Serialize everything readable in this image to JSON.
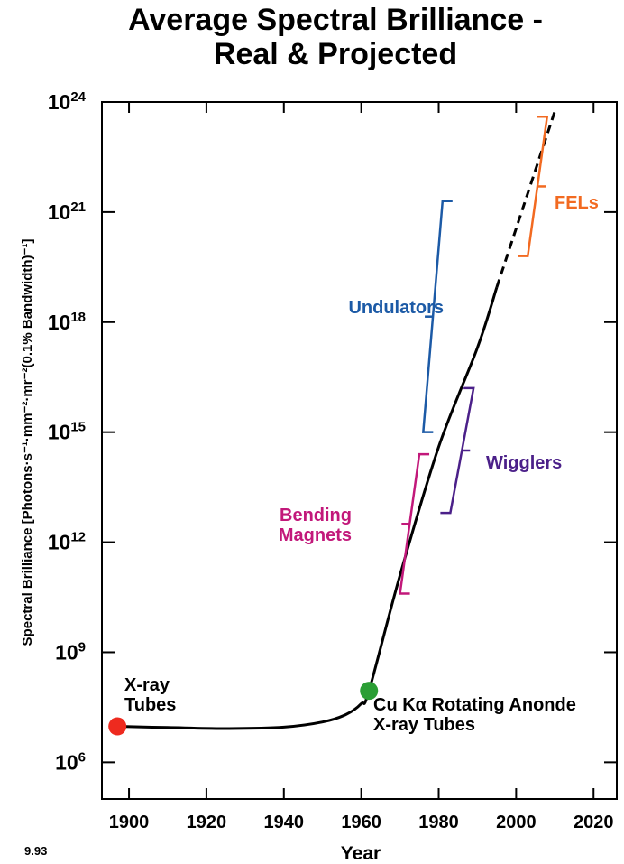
{
  "chart_data": {
    "type": "line",
    "title_lines": [
      "Average Spectral Brilliance -",
      "Real & Projected"
    ],
    "xlabel": "Year",
    "ylabel": "Spectral Brilliance [Photons·s⁻¹·mm⁻²·mr⁻²(0.1% Bandwidth)⁻¹]",
    "figure_code": "9.93",
    "x_ticks": [
      1900,
      1920,
      1940,
      1960,
      1980,
      2000,
      2020
    ],
    "y_ticks": [
      {
        "exp": 6,
        "base": "10",
        "sup": "6"
      },
      {
        "exp": 9,
        "base": "10",
        "sup": "9"
      },
      {
        "exp": 12,
        "base": "10",
        "sup": "12"
      },
      {
        "exp": 15,
        "base": "10",
        "sup": "15"
      },
      {
        "exp": 18,
        "base": "10",
        "sup": "18"
      },
      {
        "exp": 21,
        "base": "10",
        "sup": "21"
      },
      {
        "exp": 24,
        "base": "10",
        "sup": "24"
      }
    ],
    "xlim": [
      1893,
      2026
    ],
    "ylim_log10": [
      5,
      24
    ],
    "y_scale": "log",
    "grid": false,
    "series": [
      {
        "style": "solid",
        "color": "#000000",
        "x": [
          1897,
          1910,
          1925,
          1940,
          1950,
          1956,
          1960,
          1962,
          1970,
          1980,
          1990,
          1995
        ],
        "log10_y": [
          6.98,
          6.95,
          6.92,
          6.96,
          7.1,
          7.3,
          7.6,
          7.95,
          11.1,
          14.6,
          17.3,
          18.95
        ]
      },
      {
        "style": "dashed",
        "color": "#000000",
        "x": [
          1995,
          2010
        ],
        "log10_y": [
          18.95,
          23.75
        ]
      }
    ],
    "points": [
      {
        "x": 1897,
        "log10_y": 6.98,
        "color": "#ee2a1f"
      },
      {
        "x": 1962,
        "log10_y": 7.95,
        "color": "#2b9e35"
      }
    ],
    "annotations": [
      {
        "id": "xray-tubes",
        "lines": [
          "X-ray",
          "Tubes"
        ],
        "color": "#000000"
      },
      {
        "id": "rotating-anode",
        "lines": [
          "Cu Kα Rotating Anonde",
          "X-ray Tubes"
        ],
        "color": "#000000"
      },
      {
        "id": "bending-magnets",
        "lines": [
          "Bending",
          "Magnets"
        ],
        "color": "#c2187a"
      },
      {
        "id": "wigglers",
        "lines": [
          "Wigglers"
        ],
        "color": "#4b2089"
      },
      {
        "id": "undulators",
        "lines": [
          "Undulators"
        ],
        "color": "#1c5aa6"
      },
      {
        "id": "fels",
        "lines": [
          "FELs"
        ],
        "color": "#f26a21"
      }
    ],
    "brackets": [
      {
        "id": "bending-magnets",
        "color": "#c2187a",
        "x_range": [
          1970,
          1975
        ],
        "log10_range": [
          10.6,
          14.4
        ],
        "side": "left"
      },
      {
        "id": "wigglers",
        "color": "#4b2089",
        "x_range": [
          1983,
          1989
        ],
        "log10_range": [
          12.8,
          16.2
        ],
        "side": "right"
      },
      {
        "id": "undulators",
        "color": "#1c5aa6",
        "x_range": [
          1976,
          1981
        ],
        "log10_range": [
          15.0,
          21.3
        ],
        "side": "left"
      },
      {
        "id": "fels",
        "color": "#f26a21",
        "x_range": [
          2003,
          2008
        ],
        "log10_range": [
          19.8,
          23.6
        ],
        "side": "right"
      }
    ]
  }
}
